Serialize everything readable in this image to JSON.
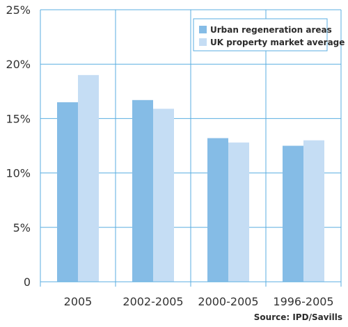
{
  "chart_data": {
    "type": "bar",
    "categories": [
      "2005",
      "2002-2005",
      "2000-2005",
      "1996-2005"
    ],
    "series": [
      {
        "name": "Urban regeneration areas",
        "values": [
          16.5,
          16.7,
          13.2,
          12.5
        ],
        "color": "#85bce6"
      },
      {
        "name": "UK property market average",
        "values": [
          19.0,
          15.9,
          12.8,
          13.0
        ],
        "color": "#c5ddf4"
      }
    ],
    "ylim": [
      0,
      25
    ],
    "yticks": [
      0,
      5,
      10,
      15,
      20,
      25
    ],
    "ytick_labels": [
      "0",
      "5%",
      "10%",
      "15%",
      "20%",
      "25%"
    ],
    "grid": true,
    "legend_position": "top-right",
    "axis_color": "#5aaee0",
    "source": "Source: IPD/Savills"
  }
}
